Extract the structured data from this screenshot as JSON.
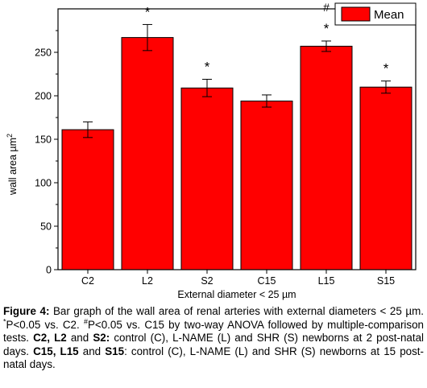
{
  "chart_data": {
    "type": "bar",
    "categories": [
      "C2",
      "L2",
      "S2",
      "C15",
      "L15",
      "S15"
    ],
    "values": [
      161,
      267,
      209,
      194,
      257,
      210
    ],
    "errors": [
      9,
      15,
      10,
      7,
      6,
      7
    ],
    "annotations": [
      [],
      [
        "#",
        "*"
      ],
      [
        "*"
      ],
      [],
      [
        "#",
        "*"
      ],
      [
        "*"
      ]
    ],
    "ylim": [
      0,
      300
    ],
    "yticks": [
      0,
      50,
      100,
      150,
      200,
      250
    ],
    "ytick_labels": [
      "0",
      "50",
      "100",
      "150",
      "200",
      "250"
    ],
    "xlabel": "External diameter < 25 µm",
    "ylabel": "wall area  µm",
    "ylabel_superscript": "2",
    "legend": {
      "label": "Mean",
      "position": "top-right"
    },
    "grid": false,
    "bar_color": "#ff0000",
    "edge_color": "#000000"
  },
  "caption": {
    "figure_label": "Figure 4:",
    "text_1": " Bar graph of the wall area of renal arteries with external diameters < 25 µm. ",
    "star_marker": "*",
    "text_2": "P<0.05 vs. C2. ",
    "hash_marker": "#",
    "text_3": "P<0.05 vs. C15 by two-way ANOVA followed by multiple-comparison tests. ",
    "group_2": "C2, L2",
    "and_1": " and ",
    "s2": "S2:",
    "text_4": " control (C), L-NAME (L) and SHR (S) newborns at 2 post-natal days. ",
    "group_15": "C15, L15",
    "and_2": " and ",
    "s15": "S15",
    "text_5": ": control (C), L-NAME (L) and SHR (S) newborns at 15 post-natal days."
  }
}
